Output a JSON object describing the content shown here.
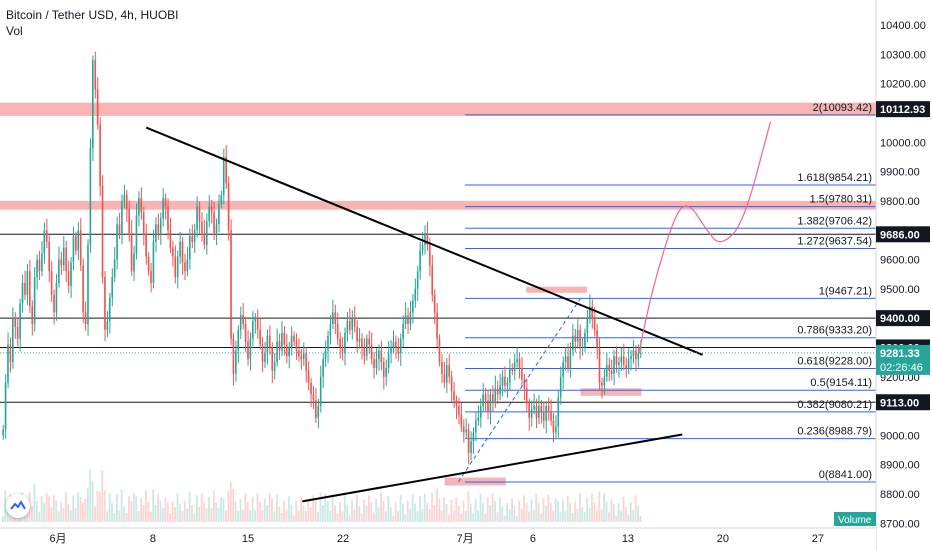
{
  "header": {
    "title": "Bitcoin / Tether USD, 4h, HUOBI",
    "volume_label": "Vol"
  },
  "icons": {
    "logo": "tradingview-logo-icon"
  },
  "colors": {
    "up": "#26a69a",
    "down": "#ef5350",
    "fib": "#2962ff",
    "zone": "#f7a6a6",
    "arc": "#f06292"
  },
  "chart_data": {
    "type": "candlestick",
    "symbol": "BTC/USDT",
    "interval": "4h",
    "exchange": "HUOBI",
    "ylim": [
      8700,
      10560
    ],
    "y_ticks": [
      10400,
      10300,
      10200,
      10100,
      10000,
      9900,
      9800,
      9700,
      9600,
      9500,
      9400,
      9300,
      9200,
      9100,
      9000,
      8900,
      8800,
      8700
    ],
    "y_tick_labels": [
      "10400.00",
      "10300.00",
      "10200.00",
      "10100.00",
      "10000.00",
      "9900.00",
      "9800.00",
      "9700.00",
      "9600.00",
      "9500.00",
      "9400.00",
      "9300.00",
      "9200.00",
      "9100.00",
      "9000.00",
      "8900.00",
      "8800.00",
      "8700.00"
    ],
    "x_ticks": [
      {
        "label": "6月",
        "day": 1
      },
      {
        "label": "8",
        "day": 8
      },
      {
        "label": "15",
        "day": 15
      },
      {
        "label": "22",
        "day": 22
      },
      {
        "label": "7月",
        "day": 31
      },
      {
        "label": "6",
        "day": 36
      },
      {
        "label": "13",
        "day": 43
      },
      {
        "label": "20",
        "day": 50
      },
      {
        "label": "27",
        "day": 57
      }
    ],
    "price_labels": [
      {
        "value": 10112.93,
        "text": "10112.93"
      },
      {
        "value": 9686.0,
        "text": "9686.00"
      },
      {
        "value": 9400.0,
        "text": "9400.00"
      },
      {
        "value": 9300.0,
        "text": "9300.00"
      },
      {
        "value": 9113.0,
        "text": "9113.00"
      }
    ],
    "current_price": {
      "value": 9281.33,
      "text": "9281.33",
      "countdown": "02:26:46"
    },
    "horizontal_lines": [
      9686.0,
      9400.0,
      9300.0,
      9113.0
    ],
    "zones": [
      {
        "from_day": -10,
        "to_day": 62,
        "y_low": 10090,
        "y_high": 10135
      },
      {
        "from_day": -10,
        "to_day": 62,
        "y_low": 9770,
        "y_high": 9800
      },
      {
        "from_day": 29.5,
        "to_day": 34,
        "y_low": 8829,
        "y_high": 8856
      },
      {
        "from_day": 35.5,
        "to_day": 40,
        "y_low": 9487,
        "y_high": 9507
      },
      {
        "from_day": 39.5,
        "to_day": 44,
        "y_low": 9135,
        "y_high": 9161
      }
    ],
    "fib_levels": [
      {
        "ratio": "0",
        "value": 8841.0,
        "label": "0(8841.00)"
      },
      {
        "ratio": "0.236",
        "value": 8988.79,
        "label": "0.236(8988.79)"
      },
      {
        "ratio": "0.382",
        "value": 9080.21,
        "label": "0.382(9080.21)"
      },
      {
        "ratio": "0.5",
        "value": 9154.11,
        "label": "0.5(9154.11)"
      },
      {
        "ratio": "0.618",
        "value": 9228.0,
        "label": "0.618(9228.00)"
      },
      {
        "ratio": "0.786",
        "value": 9333.2,
        "label": "0.786(9333.20)"
      },
      {
        "ratio": "1",
        "value": 9467.21,
        "label": "1(9467.21)"
      },
      {
        "ratio": "1.272",
        "value": 9637.54,
        "label": "1.272(9637.54)"
      },
      {
        "ratio": "1.382",
        "value": 9706.42,
        "label": "1.382(9706.42)"
      },
      {
        "ratio": "1.5",
        "value": 9780.31,
        "label": "1.5(9780.31)"
      },
      {
        "ratio": "1.618",
        "value": 9854.21,
        "label": "1.618(9854.21)"
      },
      {
        "ratio": "2",
        "value": 10093.42,
        "label": "2(10093.42)"
      }
    ],
    "fib_range_days": [
      31,
      62
    ],
    "trendlines": [
      {
        "from": {
          "day": 7.5,
          "price": 10050
        },
        "to": {
          "day": 48.5,
          "price": 9275
        }
      },
      {
        "from": {
          "day": 19,
          "price": 8775
        },
        "to": {
          "day": 47,
          "price": 9003
        }
      }
    ],
    "dashed_line": {
      "from": {
        "day": 30.5,
        "price": 8841
      },
      "to": {
        "day": 39.5,
        "price": 9467
      }
    },
    "projection_path": [
      {
        "day": 43.8,
        "price": 9280
      },
      {
        "day": 44.8,
        "price": 9500
      },
      {
        "day": 46.5,
        "price": 9760
      },
      {
        "day": 47.5,
        "price": 9795
      },
      {
        "day": 48.8,
        "price": 9700
      },
      {
        "day": 49.8,
        "price": 9645
      },
      {
        "day": 51.5,
        "price": 9720
      },
      {
        "day": 53.5,
        "price": 10070
      }
    ],
    "volume_label": "Volume",
    "candles_close": [
      9020,
      9180,
      9310,
      9250,
      9400,
      9370,
      9330,
      9450,
      9520,
      9480,
      9560,
      9440,
      9380,
      9540,
      9600,
      9560,
      9620,
      9700,
      9660,
      9560,
      9480,
      9420,
      9520,
      9600,
      9580,
      9640,
      9560,
      9510,
      9590,
      9680,
      9630,
      9700,
      9580,
      9420,
      9380,
      9650,
      9980,
      10280,
      10180,
      10060,
      9850,
      9540,
      9360,
      9390,
      9470,
      9540,
      9600,
      9720,
      9690,
      9800,
      9820,
      9770,
      9690,
      9560,
      9620,
      9750,
      9810,
      9760,
      9690,
      9610,
      9560,
      9520,
      9660,
      9720,
      9690,
      9740,
      9810,
      9780,
      9700,
      9640,
      9610,
      9540,
      9610,
      9660,
      9590,
      9560,
      9600,
      9680,
      9660,
      9700,
      9780,
      9730,
      9690,
      9650,
      9730,
      9780,
      9760,
      9690,
      9720,
      9790,
      9820,
      9950,
      9860,
      9700,
      9330,
      9210,
      9290,
      9360,
      9410,
      9380,
      9320,
      9260,
      9330,
      9390,
      9400,
      9360,
      9310,
      9250,
      9280,
      9340,
      9300,
      9220,
      9250,
      9320,
      9290,
      9350,
      9310,
      9270,
      9300,
      9340,
      9320,
      9290,
      9270,
      9260,
      9280,
      9220,
      9180,
      9140,
      9120,
      9060,
      9100,
      9200,
      9260,
      9290,
      9340,
      9380,
      9420,
      9380,
      9330,
      9300,
      9280,
      9350,
      9390,
      9360,
      9400,
      9370,
      9320,
      9330,
      9300,
      9270,
      9330,
      9310,
      9260,
      9230,
      9260,
      9290,
      9250,
      9200,
      9230,
      9280,
      9300,
      9320,
      9300,
      9280,
      9330,
      9380,
      9410,
      9380,
      9420,
      9460,
      9500,
      9560,
      9630,
      9650,
      9690,
      9650,
      9580,
      9480,
      9420,
      9330,
      9250,
      9210,
      9180,
      9240,
      9200,
      9150,
      9120,
      9100,
      9070,
      9030,
      9010,
      9020,
      8940,
      8980,
      9010,
      9050,
      9060,
      9100,
      9140,
      9120,
      9080,
      9140,
      9110,
      9160,
      9140,
      9170,
      9200,
      9170,
      9180,
      9230,
      9220,
      9250,
      9260,
      9230,
      9190,
      9160,
      9110,
      9060,
      9090,
      9100,
      9060,
      9100,
      9080,
      9050,
      9100,
      9080,
      9050,
      9010,
      9030,
      9130,
      9200,
      9250,
      9270,
      9230,
      9290,
      9340,
      9320,
      9360,
      9300,
      9300,
      9350,
      9400,
      9440,
      9400,
      9360,
      9300,
      9180,
      9170,
      9200,
      9240,
      9220,
      9210,
      9270,
      9240,
      9250,
      9270,
      9240,
      9230,
      9260,
      9270,
      9290,
      9260,
      9280,
      9281
    ],
    "candles_open_first": 9000
  }
}
